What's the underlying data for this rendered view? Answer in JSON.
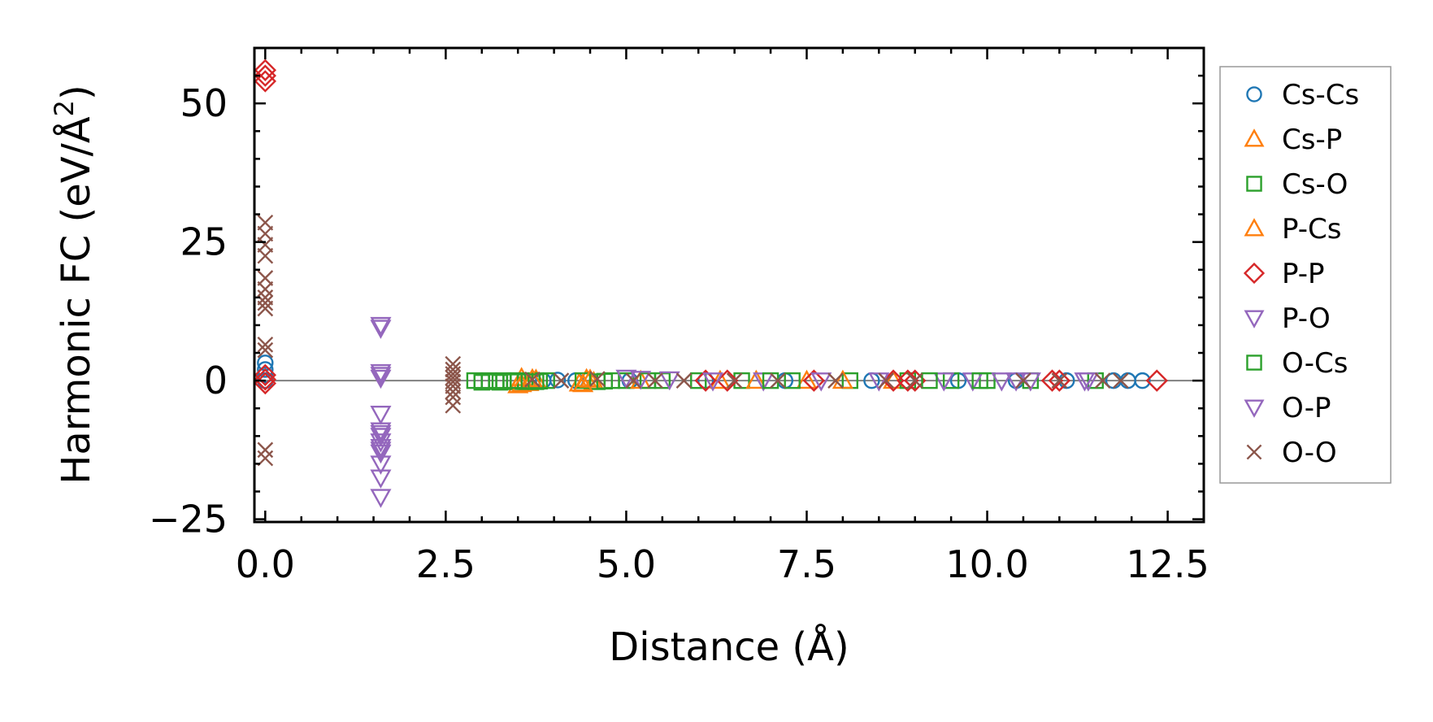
{
  "chart_data": {
    "type": "scatter",
    "title": "",
    "xlabel": "Distance (Å)",
    "ylabel_main": "Harmonic FC (eV/Å",
    "ylabel_sup": "2",
    "ylabel_close": ")",
    "xlim": [
      -0.15,
      13.0
    ],
    "ylim": [
      -25.5,
      60.0
    ],
    "xticks": [
      0.0,
      2.5,
      5.0,
      7.5,
      10.0,
      12.5
    ],
    "xtick_labels": [
      "0.0",
      "2.5",
      "5.0",
      "7.5",
      "10.0",
      "12.5"
    ],
    "yticks": [
      -25,
      0,
      25,
      50
    ],
    "ytick_labels": [
      "−25",
      "0",
      "25",
      "50"
    ],
    "legend_position": "outside-right",
    "zero_line": true,
    "series": [
      {
        "name": "Cs-Cs",
        "marker": "circle",
        "color": "#1f77b4",
        "points": [
          [
            0.0,
            3.2
          ],
          [
            0.0,
            2.0
          ],
          [
            0.0,
            1.0
          ],
          [
            0.0,
            0.0
          ],
          [
            3.85,
            0.0
          ],
          [
            4.05,
            0.1
          ],
          [
            4.3,
            0.0
          ],
          [
            5.05,
            0.0
          ],
          [
            6.1,
            0.0
          ],
          [
            7.2,
            0.0
          ],
          [
            8.4,
            0.0
          ],
          [
            9.6,
            0.0
          ],
          [
            10.4,
            0.0
          ],
          [
            11.1,
            0.0
          ],
          [
            11.75,
            0.0
          ],
          [
            11.95,
            0.0
          ],
          [
            12.15,
            0.0
          ]
        ]
      },
      {
        "name": "Cs-P",
        "marker": "triangle-up",
        "color": "#ff7f0e",
        "points": [
          [
            3.5,
            -0.8
          ],
          [
            3.55,
            0.5
          ],
          [
            3.65,
            -0.4
          ],
          [
            3.75,
            0.2
          ],
          [
            4.35,
            -0.5
          ],
          [
            4.45,
            0.3
          ],
          [
            4.55,
            -0.2
          ],
          [
            6.3,
            0.0
          ],
          [
            7.5,
            0.0
          ],
          [
            8.7,
            0.0
          ]
        ]
      },
      {
        "name": "Cs-O",
        "marker": "square",
        "color": "#2ca02c",
        "points": [
          [
            2.9,
            0.0
          ],
          [
            3.0,
            -0.3
          ],
          [
            3.1,
            0.0
          ],
          [
            3.2,
            -0.2
          ],
          [
            3.3,
            0.0
          ],
          [
            3.4,
            -0.2
          ],
          [
            3.5,
            0.0
          ],
          [
            3.6,
            -0.2
          ],
          [
            3.7,
            0.0
          ],
          [
            3.8,
            -0.1
          ],
          [
            3.9,
            0.0
          ],
          [
            4.4,
            0.0
          ],
          [
            4.6,
            -0.2
          ],
          [
            4.8,
            0.0
          ],
          [
            5.0,
            0.0
          ],
          [
            5.5,
            0.0
          ],
          [
            6.0,
            0.0
          ],
          [
            6.6,
            0.0
          ],
          [
            7.3,
            0.0
          ],
          [
            8.1,
            0.0
          ],
          [
            8.9,
            0.0
          ],
          [
            9.5,
            0.0
          ],
          [
            10.0,
            0.0
          ],
          [
            10.6,
            0.0
          ],
          [
            11.5,
            0.0
          ]
        ]
      },
      {
        "name": "P-Cs",
        "marker": "triangle-up",
        "color": "#ff7f0e",
        "points": [
          [
            3.55,
            -0.6
          ],
          [
            3.7,
            0.3
          ],
          [
            4.4,
            -0.6
          ],
          [
            4.5,
            0.2
          ],
          [
            5.2,
            0.0
          ],
          [
            6.8,
            0.0
          ],
          [
            8.0,
            0.0
          ]
        ]
      },
      {
        "name": "P-P",
        "marker": "diamond",
        "color": "#d62728",
        "points": [
          [
            0.0,
            56.0
          ],
          [
            0.0,
            55.0
          ],
          [
            0.0,
            54.0
          ],
          [
            0.0,
            1.0
          ],
          [
            0.0,
            0.2
          ],
          [
            0.0,
            -0.5
          ],
          [
            6.1,
            0.0
          ],
          [
            6.4,
            0.0
          ],
          [
            7.6,
            0.0
          ],
          [
            8.7,
            0.0
          ],
          [
            8.9,
            0.0
          ],
          [
            9.0,
            0.0
          ],
          [
            10.9,
            0.0
          ],
          [
            11.0,
            0.0
          ],
          [
            12.35,
            0.0
          ]
        ]
      },
      {
        "name": "P-O",
        "marker": "triangle-down",
        "color": "#9467bd",
        "points": [
          [
            1.6,
            10.0
          ],
          [
            1.6,
            9.5
          ],
          [
            1.6,
            1.5
          ],
          [
            1.6,
            0.5
          ],
          [
            1.6,
            -6.0
          ],
          [
            1.6,
            -9.0
          ],
          [
            1.6,
            -10.0
          ],
          [
            1.6,
            -11.0
          ],
          [
            1.6,
            -12.0
          ],
          [
            1.6,
            -13.0
          ],
          [
            1.6,
            -15.0
          ],
          [
            1.6,
            -17.5
          ],
          [
            1.6,
            -21.0
          ],
          [
            5.0,
            0.5
          ],
          [
            5.6,
            0.2
          ],
          [
            6.9,
            0.0
          ],
          [
            7.7,
            0.0
          ],
          [
            9.4,
            0.0
          ],
          [
            9.8,
            0.0
          ],
          [
            10.2,
            0.0
          ],
          [
            10.6,
            0.0
          ],
          [
            11.4,
            0.0
          ]
        ]
      },
      {
        "name": "O-Cs",
        "marker": "square",
        "color": "#2ca02c",
        "points": [
          [
            3.0,
            -0.1
          ],
          [
            3.25,
            -0.3
          ],
          [
            3.45,
            0.0
          ],
          [
            3.75,
            -0.2
          ],
          [
            4.7,
            -0.1
          ],
          [
            5.3,
            0.0
          ],
          [
            7.0,
            0.0
          ],
          [
            9.2,
            0.0
          ],
          [
            9.9,
            0.0
          ]
        ]
      },
      {
        "name": "O-P",
        "marker": "triangle-down",
        "color": "#9467bd",
        "points": [
          [
            1.6,
            1.0
          ],
          [
            1.6,
            -9.5
          ],
          [
            1.6,
            -12.5
          ],
          [
            5.2,
            0.3
          ],
          [
            6.2,
            0.0
          ],
          [
            8.5,
            0.0
          ],
          [
            10.4,
            0.0
          ],
          [
            11.35,
            0.0
          ]
        ]
      },
      {
        "name": "O-O",
        "marker": "x",
        "color": "#8c564b",
        "points": [
          [
            0.0,
            28.5
          ],
          [
            0.0,
            26.5
          ],
          [
            0.0,
            24.5
          ],
          [
            0.0,
            22.5
          ],
          [
            0.0,
            18.5
          ],
          [
            0.0,
            16.5
          ],
          [
            0.0,
            15.0
          ],
          [
            0.0,
            14.0
          ],
          [
            0.0,
            13.0
          ],
          [
            0.0,
            6.5
          ],
          [
            0.0,
            5.5
          ],
          [
            0.0,
            -12.5
          ],
          [
            0.0,
            -14.0
          ],
          [
            2.6,
            3.0
          ],
          [
            2.6,
            2.0
          ],
          [
            2.6,
            1.2
          ],
          [
            2.6,
            0.5
          ],
          [
            2.6,
            -0.2
          ],
          [
            2.6,
            -1.0
          ],
          [
            2.6,
            -2.0
          ],
          [
            2.6,
            -3.0
          ],
          [
            2.6,
            -4.5
          ],
          [
            3.7,
            0.2
          ],
          [
            4.1,
            0.0
          ],
          [
            4.6,
            0.3
          ],
          [
            5.1,
            0.0
          ],
          [
            5.4,
            0.0
          ],
          [
            5.8,
            0.0
          ],
          [
            6.5,
            0.0
          ],
          [
            7.1,
            0.0
          ],
          [
            7.9,
            0.0
          ],
          [
            8.6,
            0.0
          ],
          [
            9.0,
            0.0
          ],
          [
            10.5,
            0.0
          ],
          [
            11.0,
            0.0
          ],
          [
            11.6,
            0.0
          ],
          [
            11.85,
            0.0
          ]
        ]
      }
    ]
  }
}
